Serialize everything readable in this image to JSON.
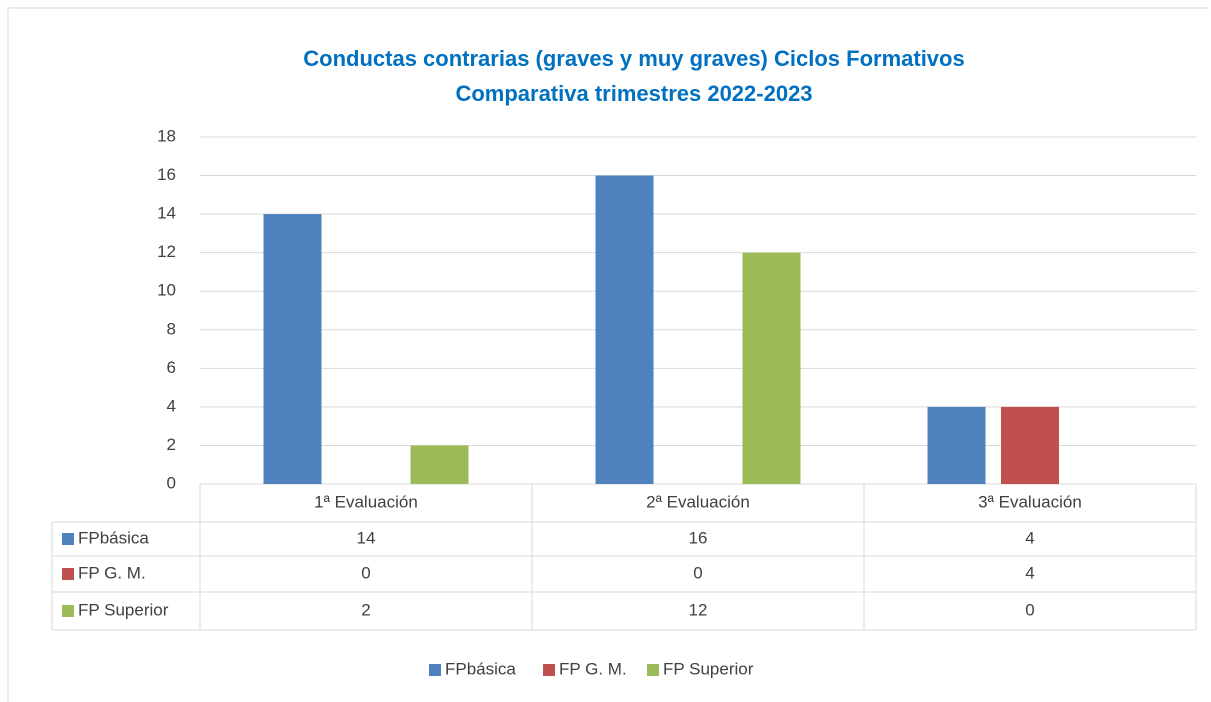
{
  "chart_data": {
    "type": "bar",
    "title": "Conductas contrarias (graves y muy graves) Ciclos Formativos",
    "subtitle": "Comparativa trimestres 2022-2023",
    "categories": [
      "1ª Evaluación",
      "2ª Evaluación",
      "3ª Evaluación"
    ],
    "series": [
      {
        "name": "FPbásica",
        "color": "#4f81bd",
        "values": [
          14,
          16,
          4
        ]
      },
      {
        "name": "FP G. M.",
        "color": "#c0504d",
        "values": [
          0,
          0,
          4
        ]
      },
      {
        "name": "FP Superior",
        "color": "#9bbb59",
        "values": [
          2,
          12,
          0
        ]
      }
    ],
    "ylim": [
      0,
      18
    ],
    "yticks": [
      0,
      2,
      4,
      6,
      8,
      10,
      12,
      14,
      16,
      18
    ],
    "grid": true,
    "legend": "bottom",
    "data_table": true
  }
}
